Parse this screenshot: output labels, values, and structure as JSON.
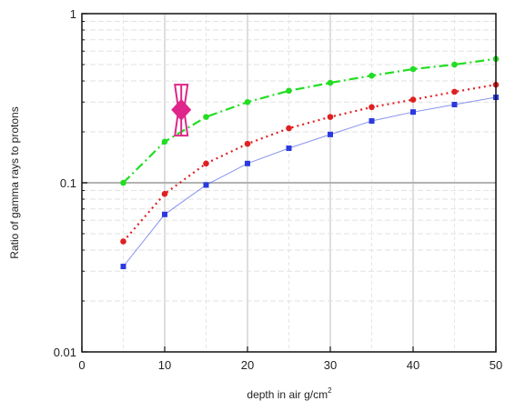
{
  "chart_data": {
    "type": "line",
    "xlabel": "depth in air g/cm",
    "xlabel_sup": "2",
    "ylabel": "Ratio of gamma rays to protons",
    "x_scale": "linear",
    "y_scale": "log",
    "xlim": [
      0,
      50
    ],
    "ylim": [
      0.01,
      1
    ],
    "x_ticks": [
      "0",
      "10",
      "20",
      "30",
      "40",
      "50"
    ],
    "y_ticks": [
      "0.01",
      "0.1",
      "1"
    ],
    "grid": true,
    "legend": "none",
    "x": [
      5,
      10,
      15,
      20,
      25,
      30,
      35,
      40,
      45,
      50
    ],
    "series": [
      {
        "color": "#22dd22",
        "line_style": "dash-dot",
        "marker": "circle",
        "values": [
          0.1,
          0.175,
          0.245,
          0.3,
          0.35,
          0.39,
          0.43,
          0.47,
          0.5,
          0.54
        ]
      },
      {
        "color": "#e02020",
        "line_style": "dotted",
        "marker": "circle",
        "values": [
          0.045,
          0.086,
          0.13,
          0.17,
          0.21,
          0.245,
          0.28,
          0.31,
          0.345,
          0.38
        ]
      },
      {
        "color": "#2a3ae0",
        "line_style": "solid",
        "marker": "square",
        "values": [
          0.032,
          0.065,
          0.097,
          0.13,
          0.16,
          0.193,
          0.232,
          0.262,
          0.29,
          0.32
        ]
      }
    ],
    "annotation": {
      "marker": "magenta-diamond",
      "color": "#e0258a",
      "x": 12,
      "y": 0.27,
      "y_error": [
        0.19,
        0.38
      ]
    }
  }
}
